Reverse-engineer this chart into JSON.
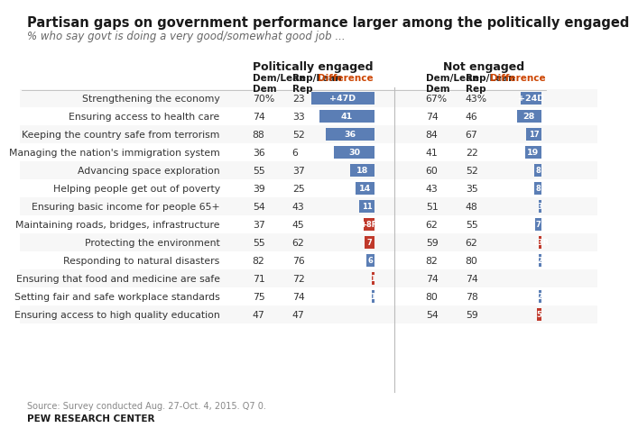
{
  "title": "Partisan gaps on government performance larger among the politically engaged",
  "subtitle": "% who say govt is doing a very good/somewhat good job ...",
  "source": "Source: Survey conducted Aug. 27-Oct. 4, 2015. Q7 0.",
  "branding": "PEW RESEARCH CENTER",
  "rows": [
    {
      "label": "Strengthening the economy",
      "eng_dem": "70%",
      "eng_rep": "23",
      "eng_diff": 47,
      "eng_diff_label": "+47D",
      "eng_diff_type": "D",
      "not_dem": "67%",
      "not_rep": "43%",
      "not_diff": 24,
      "not_diff_label": "+24D",
      "not_diff_type": "D"
    },
    {
      "label": "Ensuring access to health care",
      "eng_dem": "74",
      "eng_rep": "33",
      "eng_diff": 41,
      "eng_diff_label": "41",
      "eng_diff_type": "D",
      "not_dem": "74",
      "not_rep": "46",
      "not_diff": 28,
      "not_diff_label": "28",
      "not_diff_type": "D"
    },
    {
      "label": "Keeping the country safe from terrorism",
      "eng_dem": "88",
      "eng_rep": "52",
      "eng_diff": 36,
      "eng_diff_label": "36",
      "eng_diff_type": "D",
      "not_dem": "84",
      "not_rep": "67",
      "not_diff": 17,
      "not_diff_label": "17",
      "not_diff_type": "D"
    },
    {
      "label": "Managing the nation's immigration system",
      "eng_dem": "36",
      "eng_rep": "6",
      "eng_diff": 30,
      "eng_diff_label": "30",
      "eng_diff_type": "D",
      "not_dem": "41",
      "not_rep": "22",
      "not_diff": 19,
      "not_diff_label": "19",
      "not_diff_type": "D"
    },
    {
      "label": "Advancing space exploration",
      "eng_dem": "55",
      "eng_rep": "37",
      "eng_diff": 18,
      "eng_diff_label": "18",
      "eng_diff_type": "D",
      "not_dem": "60",
      "not_rep": "52",
      "not_diff": 8,
      "not_diff_label": "8",
      "not_diff_type": "D"
    },
    {
      "label": "Helping people get out of poverty",
      "eng_dem": "39",
      "eng_rep": "25",
      "eng_diff": 14,
      "eng_diff_label": "14",
      "eng_diff_type": "D",
      "not_dem": "43",
      "not_rep": "35",
      "not_diff": 8,
      "not_diff_label": "8",
      "not_diff_type": "D"
    },
    {
      "label": "Ensuring basic income for people 65+",
      "eng_dem": "54",
      "eng_rep": "43",
      "eng_diff": 11,
      "eng_diff_label": "11",
      "eng_diff_type": "D",
      "not_dem": "51",
      "not_rep": "48",
      "not_diff": 3,
      "not_diff_label": "3",
      "not_diff_type": "D"
    },
    {
      "label": "Maintaining roads, bridges, infrastructure",
      "eng_dem": "37",
      "eng_rep": "45",
      "eng_diff": 8,
      "eng_diff_label": "+8R",
      "eng_diff_type": "R",
      "not_dem": "62",
      "not_rep": "55",
      "not_diff": 7,
      "not_diff_label": "7",
      "not_diff_type": "D"
    },
    {
      "label": "Protecting the environment",
      "eng_dem": "55",
      "eng_rep": "62",
      "eng_diff": 7,
      "eng_diff_label": "7",
      "eng_diff_type": "R",
      "not_dem": "59",
      "not_rep": "62",
      "not_diff": 3,
      "not_diff_label": "+3R",
      "not_diff_type": "R"
    },
    {
      "label": "Responding to natural disasters",
      "eng_dem": "82",
      "eng_rep": "76",
      "eng_diff": 6,
      "eng_diff_label": "6",
      "eng_diff_type": "D",
      "not_dem": "82",
      "not_rep": "80",
      "not_diff": 2,
      "not_diff_label": "2",
      "not_diff_type": "D"
    },
    {
      "label": "Ensuring that food and medicine are safe",
      "eng_dem": "71",
      "eng_rep": "72",
      "eng_diff": 1,
      "eng_diff_label": "1",
      "eng_diff_type": "R",
      "not_dem": "74",
      "not_rep": "74",
      "not_diff": 0,
      "not_diff_label": "",
      "not_diff_type": "none"
    },
    {
      "label": "Setting fair and safe workplace standards",
      "eng_dem": "75",
      "eng_rep": "74",
      "eng_diff": 1,
      "eng_diff_label": "1",
      "eng_diff_type": "D",
      "not_dem": "80",
      "not_rep": "78",
      "not_diff": 2,
      "not_diff_label": "2",
      "not_diff_type": "D"
    },
    {
      "label": "Ensuring access to high quality education",
      "eng_dem": "47",
      "eng_rep": "47",
      "eng_diff": 0,
      "eng_diff_label": "",
      "eng_diff_type": "none",
      "not_dem": "54",
      "not_rep": "59",
      "not_diff": 5,
      "not_diff_label": "5",
      "not_diff_type": "R"
    }
  ],
  "colors": {
    "dem_bar": "#5b7eb5",
    "rep_bar": "#c0392b",
    "title_text": "#1a1a1a",
    "subtitle_text": "#666666",
    "header_text": "#1a1a1a",
    "data_text": "#333333",
    "source_text": "#888888",
    "background": "#ffffff",
    "row_alt": "#f0f0f0",
    "divider": "#bbbbbb"
  }
}
